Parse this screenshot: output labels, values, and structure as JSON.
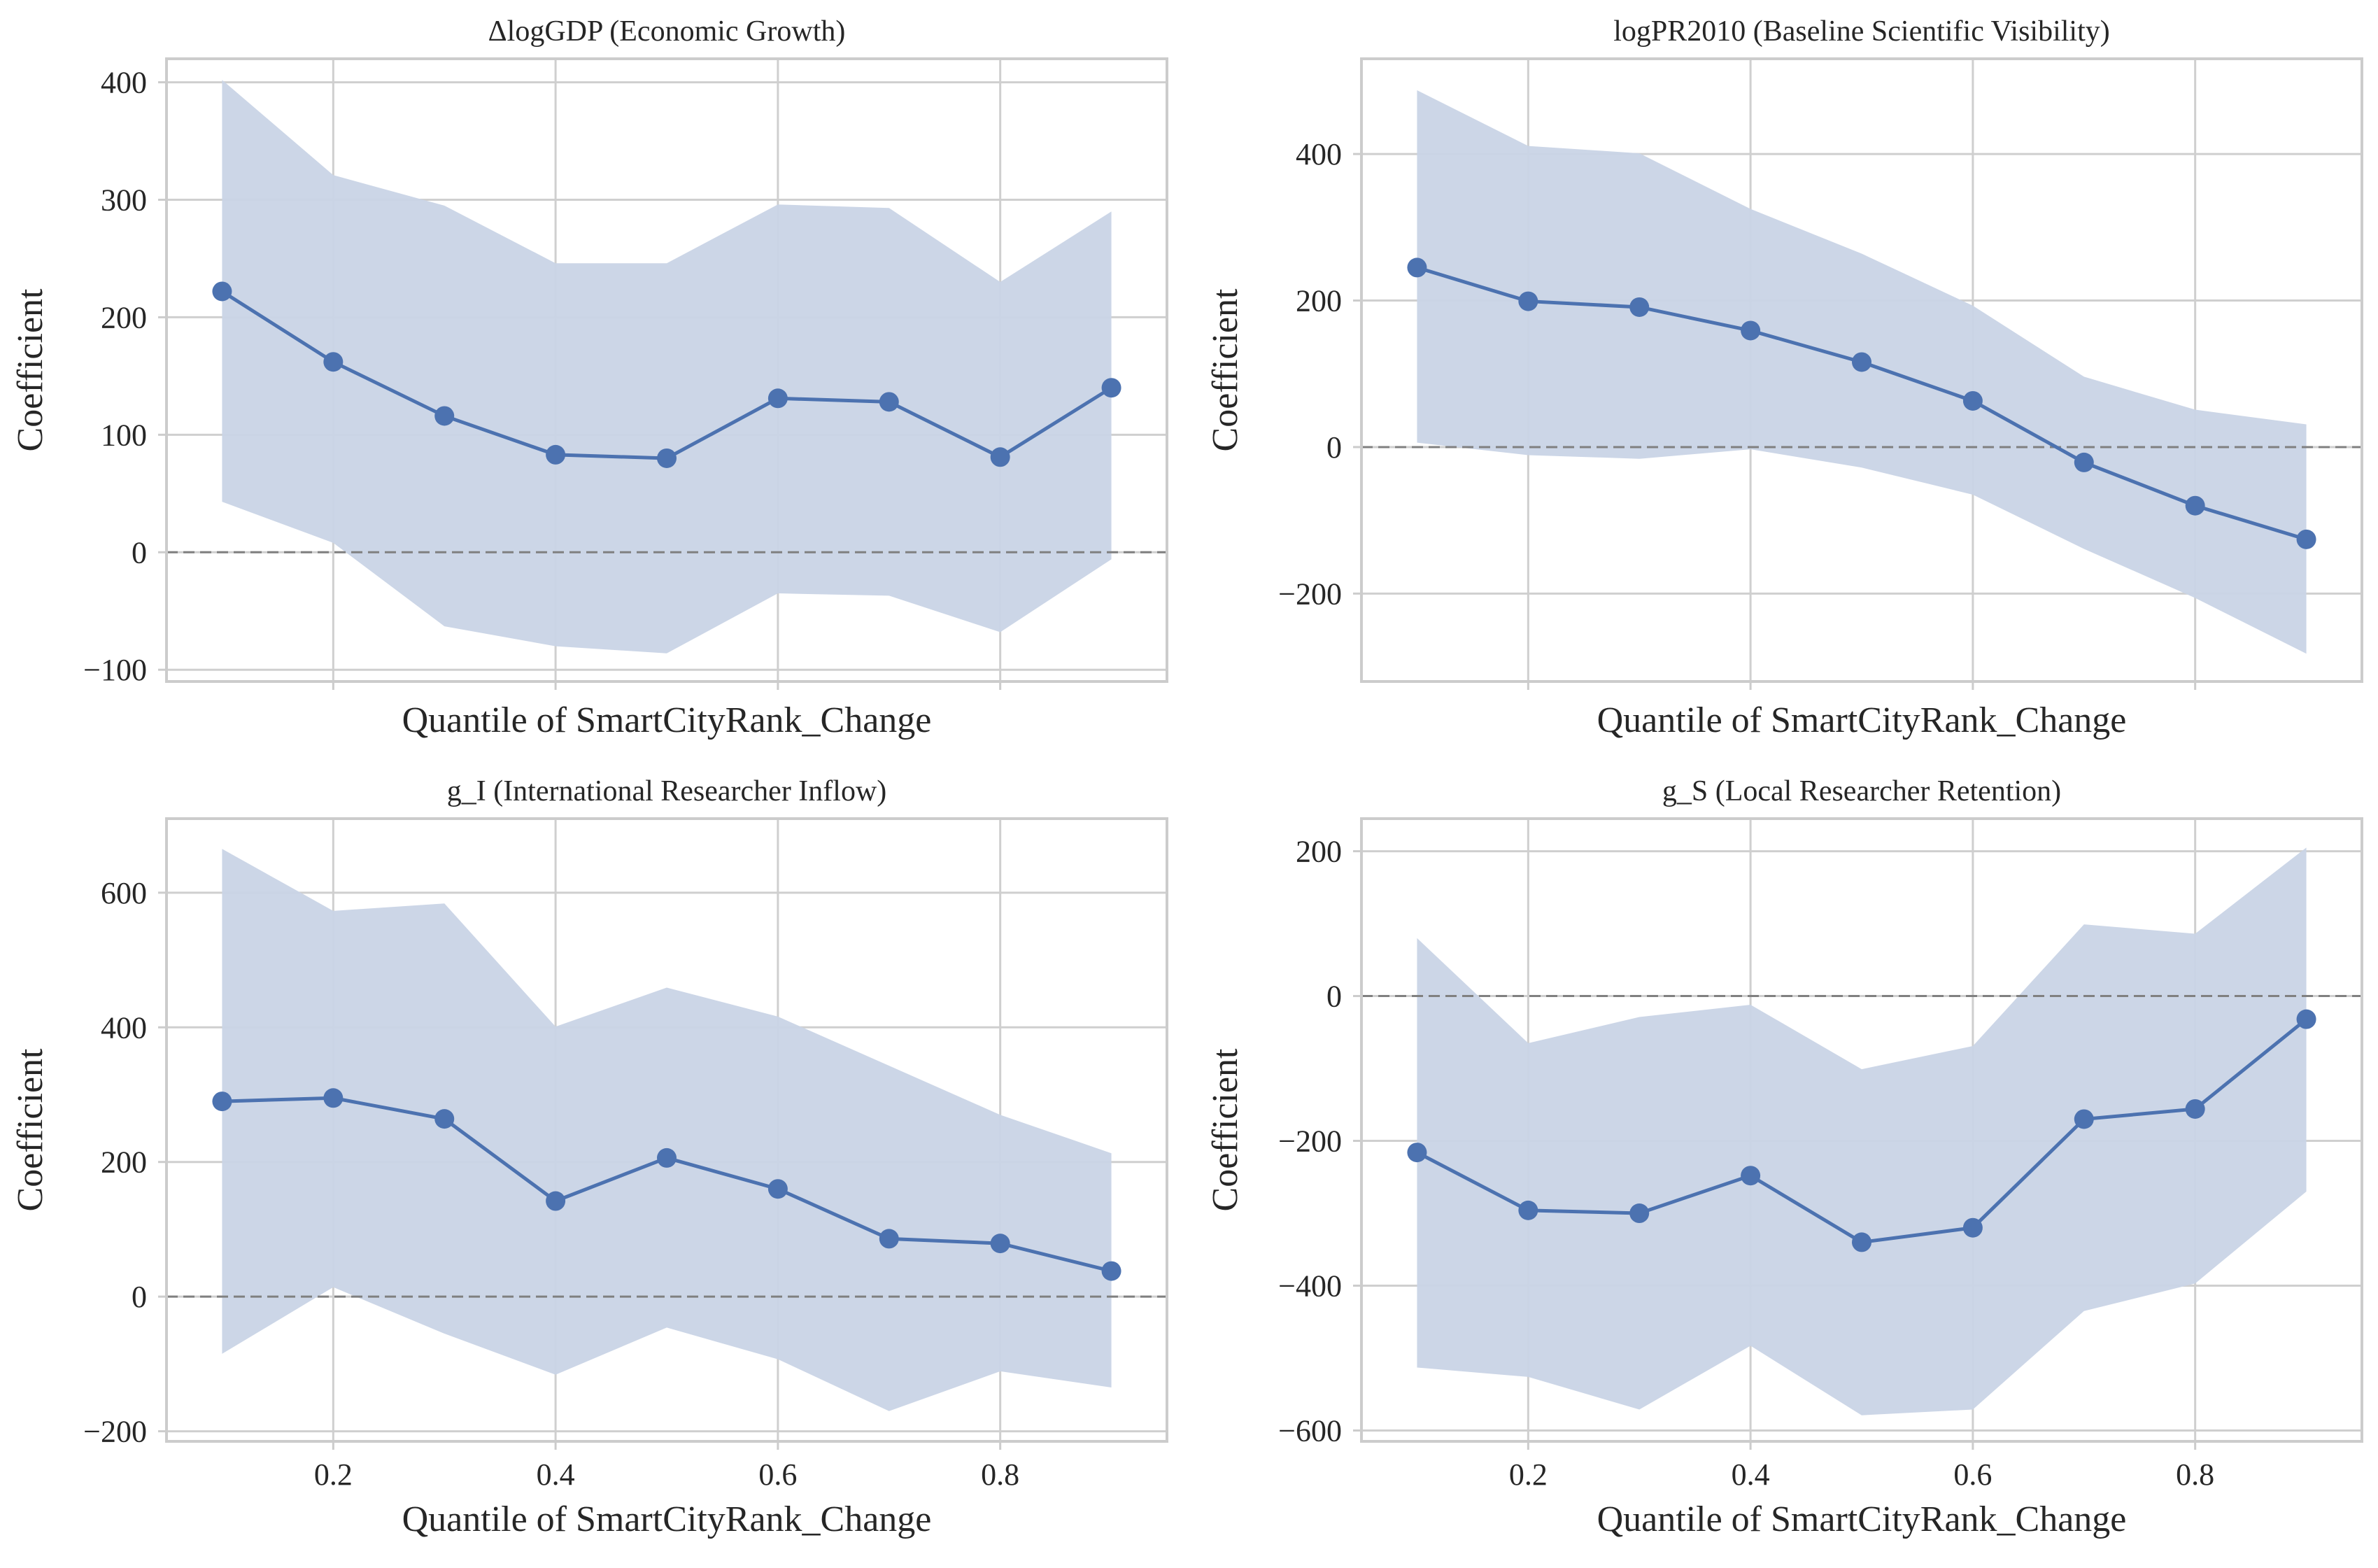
{
  "chart_data": [
    {
      "type": "line",
      "title": "ΔlogGDP (Economic Growth)",
      "xlabel": "Quantile of SmartCityRank_Change",
      "ylabel": "Coefficient",
      "x": [
        0.1,
        0.2,
        0.3,
        0.4,
        0.5,
        0.6,
        0.7,
        0.8,
        0.9
      ],
      "series": [
        {
          "name": "coefficient",
          "values": [
            222,
            162,
            116,
            83,
            80,
            131,
            128,
            81,
            140
          ],
          "ci_lower": [
            43,
            8,
            -63,
            -80,
            -86,
            -35,
            -37,
            -68,
            -6
          ],
          "ci_upper": [
            402,
            321,
            295,
            246,
            246,
            296,
            293,
            230,
            290
          ]
        }
      ],
      "reference_line": 0,
      "xlim": [
        0.05,
        0.95
      ],
      "ylim": [
        -110,
        420
      ],
      "yticks": [
        -100,
        0,
        100,
        200,
        300,
        400
      ],
      "ytick_labels": [
        "−100",
        "0",
        "100",
        "200",
        "300",
        "400"
      ],
      "xticks": [
        0.2,
        0.4,
        0.6,
        0.8
      ],
      "xtick_labels": [],
      "grid": true,
      "colors": {
        "line": "#4c72b0",
        "band": "#c9d4e6",
        "grid": "#cfcfcf",
        "zero": "#808080",
        "frame": "#cccccc"
      }
    },
    {
      "type": "line",
      "title": "logPR2010 (Baseline Scientific Visibility)",
      "xlabel": "Quantile of SmartCityRank_Change",
      "ylabel": "Coefficient",
      "x": [
        0.1,
        0.2,
        0.3,
        0.4,
        0.5,
        0.6,
        0.7,
        0.8,
        0.9
      ],
      "series": [
        {
          "name": "coefficient",
          "values": [
            245,
            199,
            191,
            159,
            116,
            63,
            -21,
            -80,
            -126
          ],
          "ci_lower": [
            6,
            -11,
            -16,
            -3,
            -28,
            -65,
            -139,
            -206,
            -282
          ],
          "ci_upper": [
            487,
            411,
            401,
            325,
            264,
            193,
            96,
            51,
            31
          ]
        }
      ],
      "reference_line": 0,
      "xlim": [
        0.05,
        0.95
      ],
      "ylim": [
        -320,
        530
      ],
      "yticks": [
        -200,
        0,
        200,
        400
      ],
      "ytick_labels": [
        "−200",
        "0",
        "200",
        "400"
      ],
      "xticks": [
        0.2,
        0.4,
        0.6,
        0.8
      ],
      "xtick_labels": [],
      "grid": true,
      "colors": {
        "line": "#4c72b0",
        "band": "#c9d4e6",
        "grid": "#cfcfcf",
        "zero": "#808080",
        "frame": "#cccccc"
      }
    },
    {
      "type": "line",
      "title": "g_I (International Researcher Inflow)",
      "xlabel": "Quantile of SmartCityRank_Change",
      "ylabel": "Coefficient",
      "x": [
        0.1,
        0.2,
        0.3,
        0.4,
        0.5,
        0.6,
        0.7,
        0.8,
        0.9
      ],
      "series": [
        {
          "name": "coefficient",
          "values": [
            290,
            295,
            264,
            142,
            206,
            160,
            86,
            79,
            38
          ],
          "ci_lower": [
            -85,
            14,
            -55,
            -116,
            -46,
            -93,
            -170,
            -111,
            -135
          ],
          "ci_upper": [
            665,
            573,
            584,
            401,
            459,
            416,
            343,
            270,
            213
          ]
        }
      ],
      "reference_line": 0,
      "xlim": [
        0.05,
        0.95
      ],
      "ylim": [
        -215,
        710
      ],
      "yticks": [
        -200,
        0,
        200,
        400,
        600
      ],
      "ytick_labels": [
        "−200",
        "0",
        "200",
        "400",
        "600"
      ],
      "xticks": [
        0.2,
        0.4,
        0.6,
        0.8
      ],
      "xtick_labels": [
        "0.2",
        "0.4",
        "0.6",
        "0.8"
      ],
      "grid": true,
      "colors": {
        "line": "#4c72b0",
        "band": "#c9d4e6",
        "grid": "#cfcfcf",
        "zero": "#808080",
        "frame": "#cccccc"
      }
    },
    {
      "type": "line",
      "title": "g_S (Local Researcher Retention)",
      "xlabel": "Quantile of SmartCityRank_Change",
      "ylabel": "Coefficient",
      "x": [
        0.1,
        0.2,
        0.3,
        0.4,
        0.5,
        0.6,
        0.7,
        0.8,
        0.9
      ],
      "series": [
        {
          "name": "coefficient",
          "values": [
            -216,
            -296,
            -300,
            -248,
            -340,
            -320,
            -170,
            -156,
            -32
          ],
          "ci_lower": [
            -513,
            -526,
            -571,
            -483,
            -579,
            -571,
            -435,
            -397,
            -270
          ],
          "ci_upper": [
            80,
            -65,
            -29,
            -12,
            -101,
            -69,
            99,
            86,
            205
          ]
        }
      ],
      "reference_line": 0,
      "xlim": [
        0.05,
        0.95
      ],
      "ylim": [
        -615,
        245
      ],
      "yticks": [
        -600,
        -400,
        -200,
        0,
        200
      ],
      "ytick_labels": [
        "−600",
        "−400",
        "−200",
        "0",
        "200"
      ],
      "xticks": [
        0.2,
        0.4,
        0.6,
        0.8
      ],
      "xtick_labels": [
        "0.2",
        "0.4",
        "0.6",
        "0.8"
      ],
      "grid": true,
      "colors": {
        "line": "#4c72b0",
        "band": "#c9d4e6",
        "grid": "#cfcfcf",
        "zero": "#808080",
        "frame": "#cccccc"
      }
    }
  ]
}
